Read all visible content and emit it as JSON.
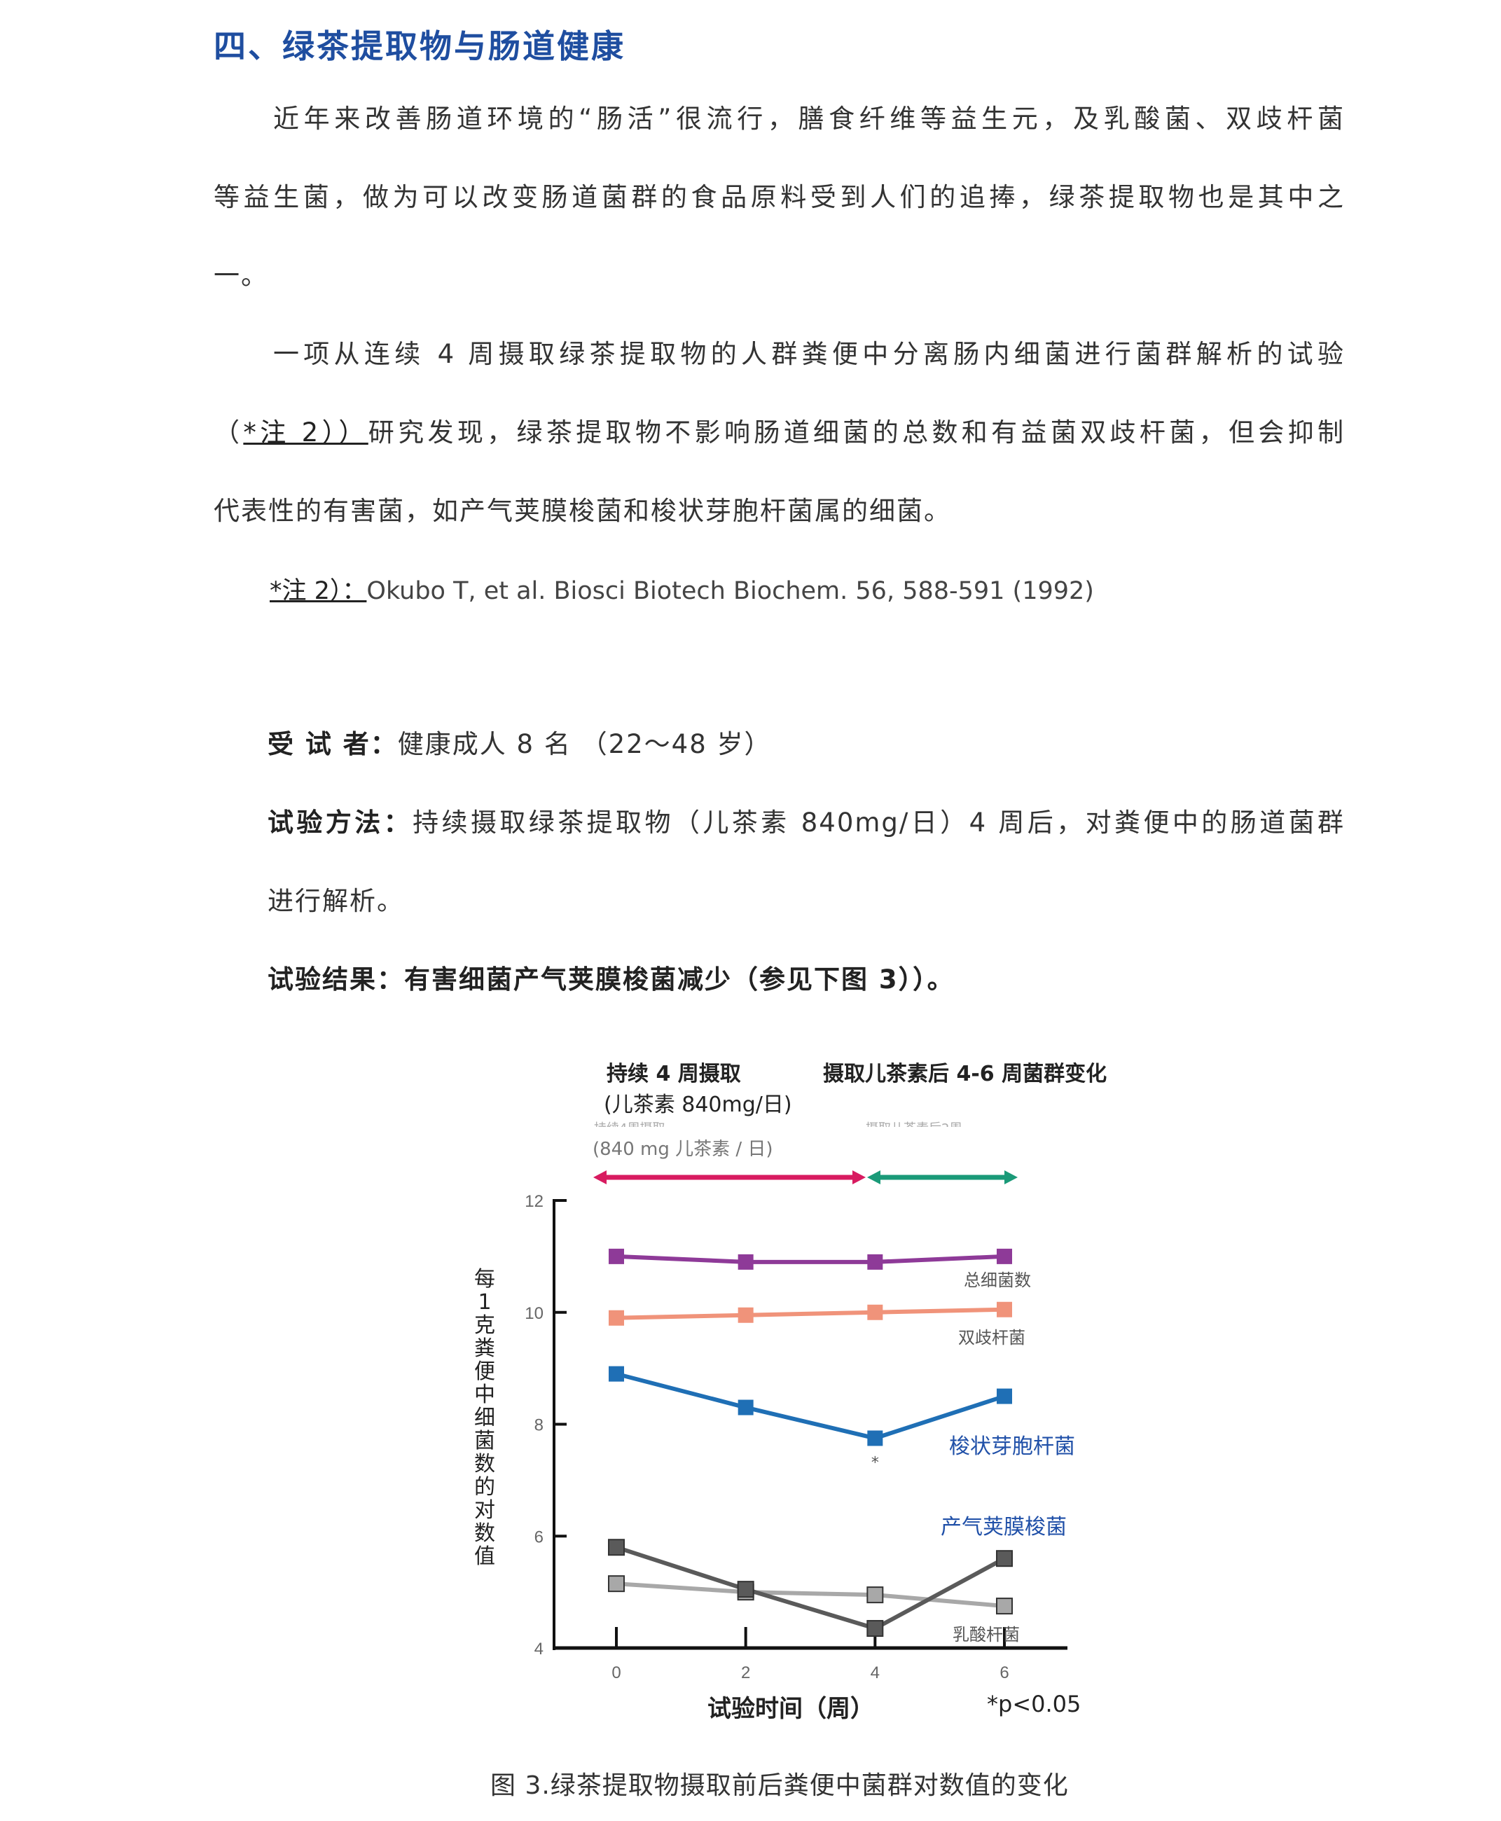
{
  "heading": "四、绿茶提取物与肠道健康",
  "para1": [
    "近年来改善肠道环境的“肠活”很流行，膳食纤维等益生元，及乳酸菌、双歧杆菌",
    "等益生菌，做为可以改变肠道菌群的食品原料受到人们的追捧，绿茶提取物也是其中之",
    "一。"
  ],
  "para2": {
    "line1": "一项从连续 4 周摄取绿茶提取物的人群粪便中分离肠内细菌进行菌群解析的试验",
    "line2_open": "（",
    "line2_ref": "*注 2））",
    "line2_rest": "研究发现，绿茶提取物不影响肠道细菌的总数和有益菌双歧杆菌，但会抑制",
    "line3": "代表性的有害菌，如产气荚膜梭菌和梭状芽胞杆菌属的细菌。"
  },
  "note": {
    "ref": "*注 2）：",
    "text": "Okubo T, et al. Biosci Biotech Biochem. 56, 588-591 (1992)"
  },
  "subjects": {
    "label": "受 试 者：",
    "text": "健康成人 8 名 （22～48 岁）"
  },
  "method": {
    "label": "试验方法：",
    "text": "持续摄取绿茶提取物（儿茶素 840mg/日）4 周后，对粪便中的肠道菌群",
    "text2": "进行解析。"
  },
  "result": {
    "label": "试验结果：",
    "text": "有害细菌产气荚膜梭菌减少（参见下图 3））。"
  },
  "chart_data": {
    "type": "line",
    "header_left": [
      "持续 4 周摄取",
      "(儿茶素 840mg/日)"
    ],
    "header_right": "摄取儿茶素后 4-6 周菌群变化",
    "faded_label_1": "持续4周摄取",
    "faded_label_2": "(840 mg 儿茶素 / 日)",
    "faded_label_3": "摄取儿茶素后2周",
    "phase_colors": {
      "intake": "#d81b60",
      "after": "#1a9a78"
    },
    "ylabel": "每1克粪便中细菌数的对数值",
    "xlabel": "试验时间（周）",
    "significance": "*p<0.05",
    "x": [
      0,
      2,
      4,
      6
    ],
    "xticks": [
      "0",
      "2",
      "4",
      "6"
    ],
    "yticks": [
      "4",
      "6",
      "8",
      "10",
      "12"
    ],
    "ylim": [
      4,
      12
    ],
    "series": [
      {
        "name": "总细菌数",
        "color": "#8e3a98",
        "values": [
          11.0,
          10.9,
          10.9,
          11.0
        ]
      },
      {
        "name": "双歧杆菌",
        "color": "#f0937a",
        "values": [
          9.9,
          9.95,
          10.0,
          10.05
        ]
      },
      {
        "name": "梭状芽胞杆菌",
        "color": "#1f6fb5",
        "values": [
          8.9,
          8.3,
          7.75,
          8.5
        ]
      },
      {
        "name": "产气荚膜梭菌",
        "color": "#5a5a5a",
        "values": [
          5.8,
          5.05,
          4.35,
          5.6
        ]
      },
      {
        "name": "乳酸杆菌",
        "color": "#a8a8a8",
        "values": [
          5.15,
          5.0,
          4.95,
          4.75
        ]
      }
    ],
    "annotation": "*"
  },
  "caption": "图 3.绿茶提取物摄取前后粪便中菌群对数值的变化"
}
